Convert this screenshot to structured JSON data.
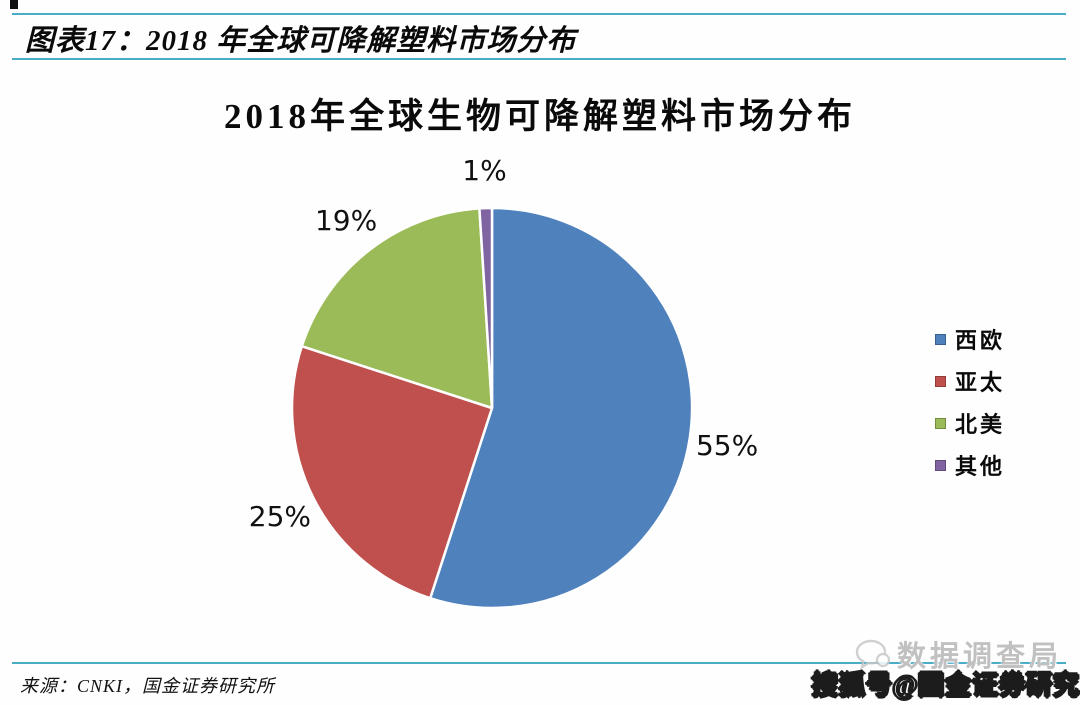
{
  "figure_header": {
    "title": "图表17：2018 年全球可降解塑料市场分布"
  },
  "chart_data": {
    "type": "pie",
    "title": "2018年全球生物可降解塑料市场分布",
    "categories": [
      "西欧",
      "亚太",
      "北美",
      "其他"
    ],
    "values": [
      55,
      25,
      19,
      1
    ],
    "labels": [
      "55%",
      "25%",
      "19%",
      "1%"
    ],
    "colors": [
      "#4F81BD",
      "#C0504D",
      "#9BBB59",
      "#8064A2"
    ],
    "start_angle_deg": 0,
    "direction": "clockwise",
    "legend_position": "right",
    "slice_border_color": "#ffffff"
  },
  "footer": {
    "source": "来源：CNKI，国金证券研究所"
  },
  "watermarks": {
    "brand": "数据调查局",
    "sohu": "搜狐号@国金证券研究"
  },
  "theme": {
    "divider_color": "#4BACC6"
  }
}
